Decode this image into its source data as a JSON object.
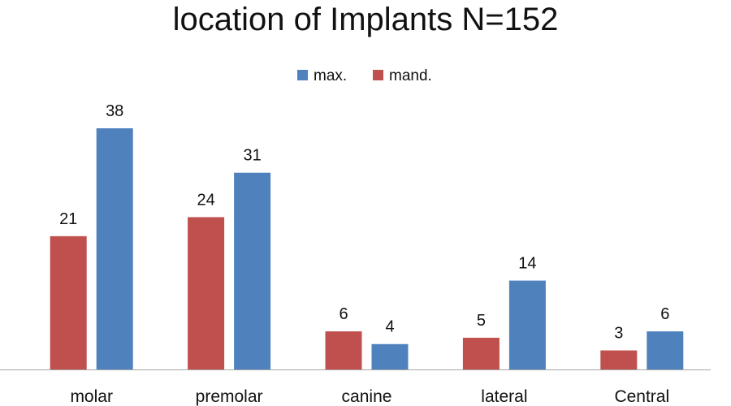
{
  "chart_data": {
    "type": "bar",
    "title": "location of Implants N=152",
    "xlabel": "",
    "ylabel": "",
    "categories": [
      "molar",
      "premolar",
      "canine",
      "lateral",
      "Central"
    ],
    "series": [
      {
        "name": "mand.",
        "color": "#c0504d",
        "values": [
          21,
          24,
          6,
          5,
          3
        ]
      },
      {
        "name": "max.",
        "color": "#4f81bd",
        "values": [
          38,
          31,
          4,
          14,
          6
        ]
      }
    ],
    "legend_order": [
      "max.",
      "mand."
    ],
    "legend_position": "top",
    "ylim": [
      0,
      38
    ],
    "grid": false,
    "data_labels": true,
    "axis_color": "#a6a6a6"
  }
}
